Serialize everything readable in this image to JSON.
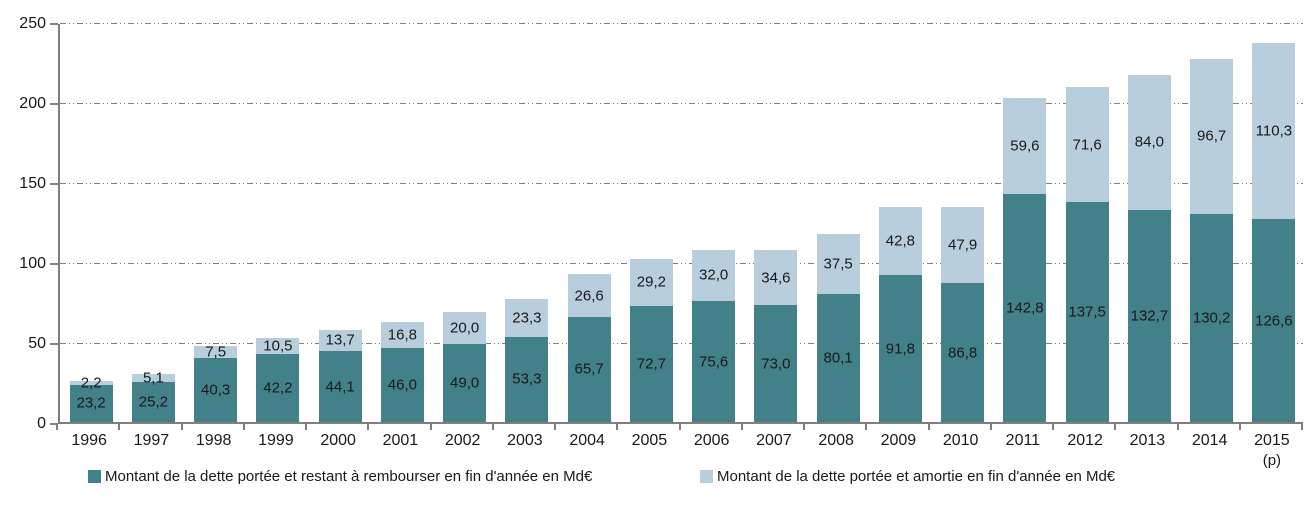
{
  "chart_data": {
    "type": "bar",
    "stacked": true,
    "title": "",
    "xlabel": "",
    "ylabel": "",
    "ylim": [
      0,
      250
    ],
    "yticks": [
      0,
      50,
      100,
      150,
      200,
      250
    ],
    "grid": "horizontal-dash-dot",
    "legend_position": "bottom",
    "decimal_separator": ",",
    "categories": [
      "1996",
      "1997",
      "1998",
      "1999",
      "2000",
      "2001",
      "2002",
      "2003",
      "2004",
      "2005",
      "2006",
      "2007",
      "2008",
      "2009",
      "2010",
      "2011",
      "2012",
      "2013",
      "2014",
      "2015"
    ],
    "last_category_note": "(p)",
    "series": [
      {
        "name": "Montant de la dette portée et restant à rembourser en fin d'année en Md€",
        "color": "#42808A",
        "values": [
          23.2,
          25.2,
          40.3,
          42.2,
          44.1,
          46.0,
          49.0,
          53.3,
          65.7,
          72.7,
          75.6,
          73.0,
          80.1,
          91.8,
          86.8,
          142.8,
          137.5,
          132.7,
          130.2,
          126.6
        ]
      },
      {
        "name": "Montant de la dette portée et amortie en fin d'année en Md€",
        "color": "#B9CEDC",
        "values": [
          2.2,
          5.1,
          7.5,
          10.5,
          13.7,
          16.8,
          20.0,
          23.3,
          26.6,
          29.2,
          32.0,
          34.6,
          37.5,
          42.8,
          47.9,
          59.6,
          71.6,
          84.0,
          96.7,
          110.3
        ]
      }
    ],
    "axis_color": "#7f7f7f",
    "label_color": "#1a1a1a"
  }
}
